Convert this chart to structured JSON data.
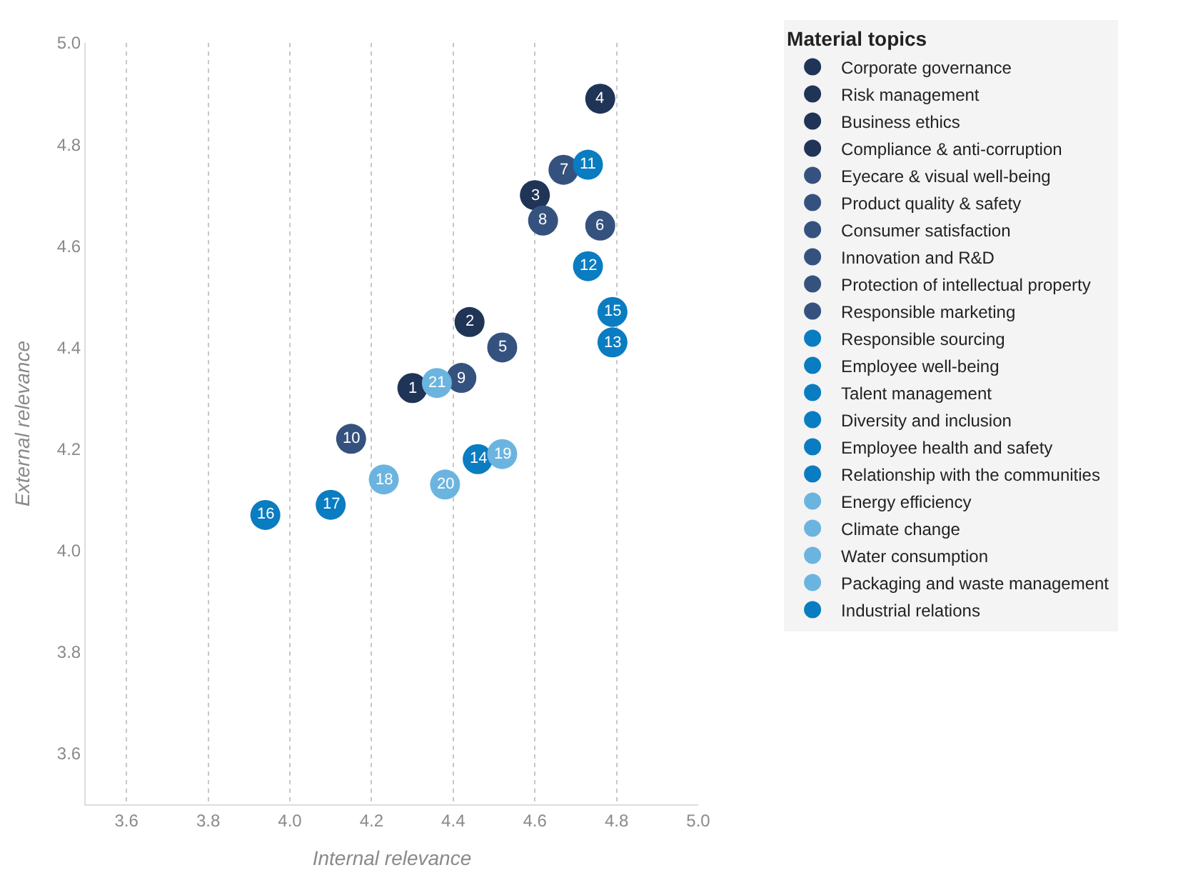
{
  "chart_data": {
    "type": "scatter",
    "xlabel": "Internal relevance",
    "ylabel": "External relevance",
    "legend_title": "Material topics",
    "xlim": [
      3.5,
      5.0
    ],
    "ylim": [
      3.5,
      5.0
    ],
    "xticks": [
      3.6,
      3.8,
      {
        "value": 4.0,
        "label": "4.0"
      },
      4.2,
      4.4,
      4.6,
      4.8,
      {
        "value": 5.0,
        "label": "5.0"
      }
    ],
    "yticks": [
      3.6,
      3.8,
      {
        "value": 4.0,
        "label": "4.0"
      },
      4.2,
      4.4,
      4.6,
      4.8,
      {
        "value": 5.0,
        "label": "5.0"
      }
    ],
    "grid": "x",
    "legend": "right",
    "marker": "circle",
    "series": [
      {
        "name": "Corporate governance",
        "color": "#1f3456",
        "x": [
          4.3
        ],
        "values": [
          4.32
        ]
      },
      {
        "name": "Risk management",
        "color": "#1f3456",
        "x": [
          4.44
        ],
        "values": [
          4.45
        ]
      },
      {
        "name": "Business ethics",
        "color": "#1f3456",
        "x": [
          4.6
        ],
        "values": [
          4.7
        ]
      },
      {
        "name": "Compliance & anti-corruption",
        "color": "#1f3456",
        "x": [
          4.76
        ],
        "values": [
          4.89
        ]
      },
      {
        "name": "Eyecare & visual well-being",
        "color": "#35527f",
        "x": [
          4.52
        ],
        "values": [
          4.4
        ]
      },
      {
        "name": "Product quality & safety",
        "color": "#35527f",
        "x": [
          4.76
        ],
        "values": [
          4.64
        ]
      },
      {
        "name": "Consumer satisfaction",
        "color": "#35527f",
        "x": [
          4.67
        ],
        "values": [
          4.75
        ]
      },
      {
        "name": "Innovation and R&D",
        "color": "#35527f",
        "x": [
          4.62
        ],
        "values": [
          4.65
        ]
      },
      {
        "name": "Protection of intellectual property",
        "color": "#35527f",
        "x": [
          4.42
        ],
        "values": [
          4.34
        ]
      },
      {
        "name": "Responsible marketing",
        "color": "#35527f",
        "x": [
          4.15
        ],
        "values": [
          4.22
        ]
      },
      {
        "name": "Responsible sourcing",
        "color": "#0a7cc1",
        "x": [
          4.73
        ],
        "values": [
          4.76
        ]
      },
      {
        "name": "Employee well-being",
        "color": "#0a7cc1",
        "x": [
          4.73
        ],
        "values": [
          4.56
        ]
      },
      {
        "name": "Talent management",
        "color": "#0a7cc1",
        "x": [
          4.79
        ],
        "values": [
          4.41
        ]
      },
      {
        "name": "Diversity and inclusion",
        "color": "#0a7cc1",
        "x": [
          4.46
        ],
        "values": [
          4.18
        ]
      },
      {
        "name": "Employee health and safety",
        "color": "#0a7cc1",
        "x": [
          4.79
        ],
        "values": [
          4.47
        ]
      },
      {
        "name": "Relationship with the communities",
        "color": "#0a7cc1",
        "x": [
          4.1
        ],
        "values": [
          4.09
        ]
      },
      {
        "name": "Energy efficiency",
        "color": "#6cb4e0",
        "x": [
          4.23
        ],
        "values": [
          4.14
        ]
      },
      {
        "name": "Climate change",
        "color": "#6cb4e0",
        "x": [
          4.52
        ],
        "values": [
          4.19
        ]
      },
      {
        "name": "Water consumption",
        "color": "#6cb4e0",
        "x": [
          4.38
        ],
        "values": [
          4.13
        ]
      },
      {
        "name": "Packaging and waste management",
        "color": "#6cb4e0",
        "x": [
          4.36
        ],
        "values": [
          4.33
        ]
      },
      {
        "name": "Industrial relations",
        "color": "#0a7cc1",
        "x": [
          3.94
        ],
        "values": [
          4.07
        ]
      }
    ],
    "annotations": [
      {
        "text": "1",
        "x": 4.3,
        "y": 4.32
      },
      {
        "text": "2",
        "x": 4.44,
        "y": 4.45
      },
      {
        "text": "3",
        "x": 4.6,
        "y": 4.7
      },
      {
        "text": "4",
        "x": 4.76,
        "y": 4.89
      },
      {
        "text": "5",
        "x": 4.52,
        "y": 4.4
      },
      {
        "text": "6",
        "x": 4.76,
        "y": 4.64
      },
      {
        "text": "7",
        "x": 4.67,
        "y": 4.75
      },
      {
        "text": "8",
        "x": 4.62,
        "y": 4.65
      },
      {
        "text": "9",
        "x": 4.42,
        "y": 4.34
      },
      {
        "text": "10",
        "x": 4.15,
        "y": 4.22
      },
      {
        "text": "11",
        "x": 4.73,
        "y": 4.76
      },
      {
        "text": "12",
        "x": 4.73,
        "y": 4.56
      },
      {
        "text": "13",
        "x": 4.79,
        "y": 4.41
      },
      {
        "text": "14",
        "x": 4.46,
        "y": 4.18
      },
      {
        "text": "15",
        "x": 4.79,
        "y": 4.47
      },
      {
        "text": "17",
        "x": 4.1,
        "y": 4.09
      },
      {
        "text": "18",
        "x": 4.23,
        "y": 4.14
      },
      {
        "text": "19",
        "x": 4.52,
        "y": 4.19
      },
      {
        "text": "20",
        "x": 4.38,
        "y": 4.13
      },
      {
        "text": "21",
        "x": 4.36,
        "y": 4.33
      },
      {
        "text": "16",
        "x": 3.94,
        "y": 4.07
      }
    ]
  }
}
